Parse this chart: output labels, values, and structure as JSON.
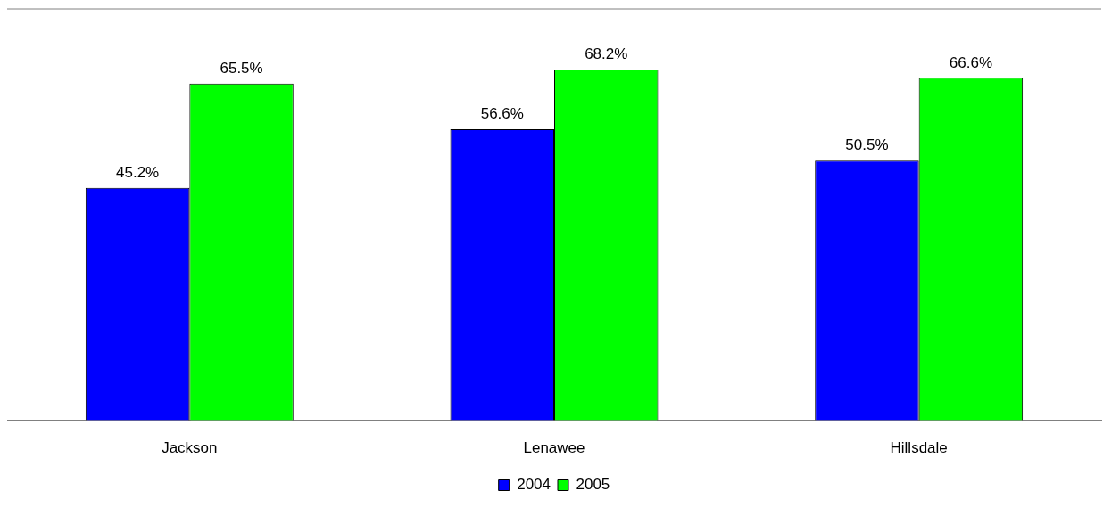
{
  "chart_data": {
    "type": "bar",
    "categories": [
      "Jackson",
      "Lenawee",
      "Hillsdale"
    ],
    "series": [
      {
        "name": "2004",
        "color": "#0000ff",
        "values": [
          45.2,
          56.6,
          50.5
        ],
        "value_labels": [
          "45.2%",
          "56.6%",
          "50.5%"
        ]
      },
      {
        "name": "2005",
        "color": "#00ff00",
        "values": [
          65.5,
          68.2,
          66.6
        ],
        "value_labels": [
          "65.5%",
          "68.2%",
          "66.6%"
        ]
      }
    ],
    "ylim": [
      0,
      80
    ],
    "tick_labels": "x",
    "grid": false,
    "legend": "bottom"
  }
}
